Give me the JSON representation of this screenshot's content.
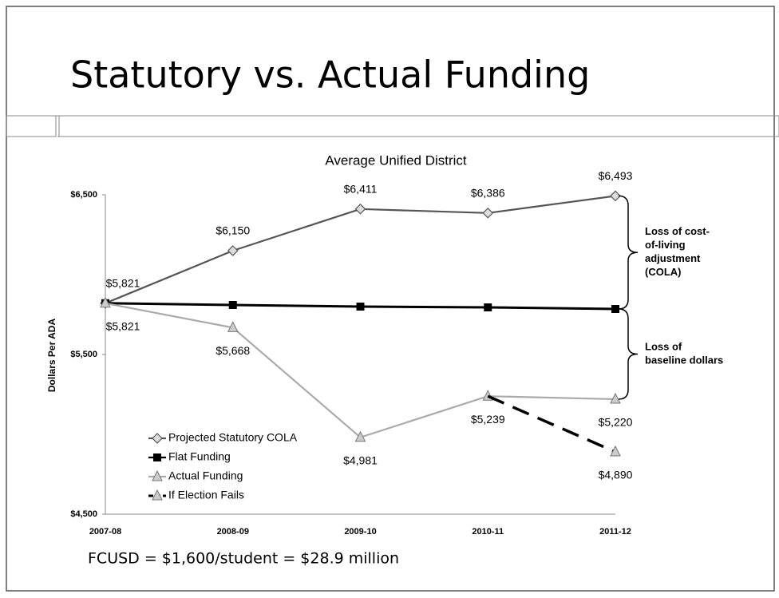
{
  "slide_title": "Statutory vs. Actual Funding",
  "footnote": "FCUSD = $1,600/student = $28.9 million",
  "chart_data": {
    "type": "line",
    "title": "Average Unified District",
    "y_label": "Dollars Per ADA",
    "categories": [
      "2007-08",
      "2008-09",
      "2009-10",
      "2010-11",
      "2011-12"
    ],
    "ylim": [
      4500,
      6500
    ],
    "yticks": [
      {
        "value": 4500,
        "label": "$4,500"
      },
      {
        "value": 5500,
        "label": "$5,500"
      },
      {
        "value": 6500,
        "label": "$6,500"
      }
    ],
    "series": [
      {
        "name": "Projected Statutory COLA",
        "color": "#555555",
        "marker": "diamond",
        "values": [
          5821,
          6150,
          6411,
          6386,
          6493
        ],
        "value_labels": [
          "$5,821",
          "$6,150",
          "$6,411",
          "$6,386",
          "$6,493"
        ]
      },
      {
        "name": "Flat Funding",
        "color": "#000000",
        "marker": "square",
        "values": [
          5821,
          5810,
          5800,
          5795,
          5785
        ]
      },
      {
        "name": "Actual Funding",
        "color": "#aaaaaa",
        "marker": "triangle",
        "values": [
          5821,
          5668,
          4981,
          5239,
          5220
        ],
        "value_labels": [
          "$5,821",
          "$5,668",
          "$4,981",
          "$5,239",
          "$5,220"
        ]
      },
      {
        "name": "If Election Fails",
        "color": "#000000",
        "marker": "triangle",
        "dashed": true,
        "values": [
          null,
          null,
          null,
          5239,
          4890
        ],
        "value_labels": [
          null,
          null,
          null,
          null,
          "$4,890"
        ]
      }
    ],
    "annotations": [
      {
        "lines": [
          "Loss of cost-",
          "of-living",
          "adjustment",
          "(COLA)"
        ]
      },
      {
        "lines": [
          "Loss of",
          "baseline dollars"
        ]
      }
    ]
  }
}
